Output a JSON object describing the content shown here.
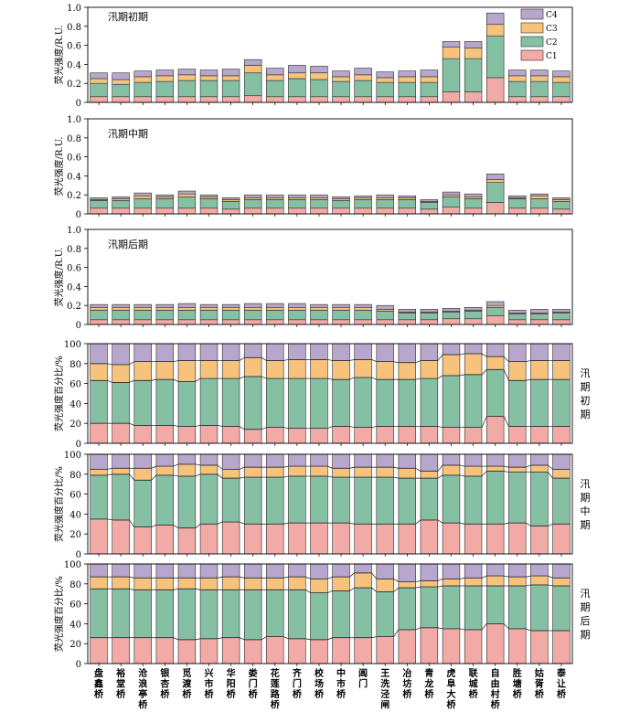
{
  "colors": {
    "C1": "#f2aaa6",
    "C2": "#86c0a4",
    "C3": "#f6c27c",
    "C4": "#b8a7cc",
    "edge": "#2b2b2b",
    "link": "#333333"
  },
  "legend": {
    "items": [
      "C4",
      "C3",
      "C2",
      "C1"
    ]
  },
  "x_labels": [
    "盘鑫桥",
    "裕堂桥",
    "沧浪亭桥",
    "银杏桥",
    "觅渡桥",
    "兴市桥",
    "华阳桥",
    "娄门桥",
    "花莲路桥",
    "齐门桥",
    "校场桥",
    "中市桥",
    "阊门",
    "王洗泾闸",
    "冶坊桥",
    "青龙桥",
    "虎阜大桥",
    "联城桥",
    "自由村桥",
    "胜塘桥",
    "姑胥桥",
    "泰让桥"
  ],
  "chart_data": [
    {
      "type": "bar",
      "stacked": true,
      "title": "汛期初期",
      "ylabel": "荧光强度/R.U.",
      "ylim": [
        0,
        1.0
      ],
      "yticks": [
        "0",
        "0.2",
        "0.4",
        "0.6",
        "0.8",
        "1.0"
      ],
      "side_label": "",
      "series": [
        {
          "name": "C1",
          "values": [
            0.06,
            0.06,
            0.06,
            0.06,
            0.06,
            0.06,
            0.06,
            0.07,
            0.06,
            0.06,
            0.06,
            0.06,
            0.06,
            0.06,
            0.06,
            0.06,
            0.11,
            0.11,
            0.26,
            0.06,
            0.06,
            0.06
          ]
        },
        {
          "name": "C2",
          "values": [
            0.14,
            0.13,
            0.15,
            0.16,
            0.17,
            0.17,
            0.17,
            0.24,
            0.17,
            0.19,
            0.18,
            0.16,
            0.17,
            0.15,
            0.15,
            0.15,
            0.35,
            0.35,
            0.44,
            0.16,
            0.16,
            0.15
          ]
        },
        {
          "name": "C3",
          "values": [
            0.05,
            0.05,
            0.06,
            0.06,
            0.06,
            0.05,
            0.05,
            0.08,
            0.06,
            0.06,
            0.07,
            0.05,
            0.06,
            0.05,
            0.06,
            0.06,
            0.12,
            0.11,
            0.12,
            0.06,
            0.06,
            0.06
          ]
        },
        {
          "name": "C4",
          "values": [
            0.06,
            0.07,
            0.06,
            0.06,
            0.06,
            0.06,
            0.07,
            0.06,
            0.07,
            0.08,
            0.07,
            0.06,
            0.07,
            0.06,
            0.06,
            0.07,
            0.06,
            0.07,
            0.12,
            0.06,
            0.06,
            0.06
          ]
        }
      ]
    },
    {
      "type": "bar",
      "stacked": true,
      "title": "汛期中期",
      "ylabel": "荧光强度/R.U.",
      "ylim": [
        0,
        1.0
      ],
      "yticks": [
        "0",
        "0.2",
        "0.4",
        "0.6",
        "0.8",
        "1.0"
      ],
      "side_label": "",
      "series": [
        {
          "name": "C1",
          "values": [
            0.06,
            0.06,
            0.06,
            0.06,
            0.06,
            0.06,
            0.05,
            0.06,
            0.06,
            0.06,
            0.06,
            0.06,
            0.06,
            0.06,
            0.06,
            0.05,
            0.07,
            0.06,
            0.12,
            0.06,
            0.06,
            0.05
          ]
        },
        {
          "name": "C2",
          "values": [
            0.08,
            0.08,
            0.1,
            0.1,
            0.12,
            0.1,
            0.08,
            0.09,
            0.09,
            0.09,
            0.09,
            0.08,
            0.09,
            0.09,
            0.09,
            0.07,
            0.11,
            0.1,
            0.21,
            0.1,
            0.1,
            0.08
          ]
        },
        {
          "name": "C3",
          "values": [
            0.01,
            0.02,
            0.03,
            0.02,
            0.03,
            0.02,
            0.02,
            0.02,
            0.02,
            0.02,
            0.02,
            0.02,
            0.02,
            0.02,
            0.02,
            0.01,
            0.02,
            0.02,
            0.03,
            0.01,
            0.03,
            0.02
          ]
        },
        {
          "name": "C4",
          "values": [
            0.02,
            0.02,
            0.03,
            0.02,
            0.03,
            0.02,
            0.02,
            0.03,
            0.03,
            0.03,
            0.03,
            0.02,
            0.02,
            0.03,
            0.02,
            0.02,
            0.03,
            0.03,
            0.06,
            0.02,
            0.02,
            0.02
          ]
        }
      ]
    },
    {
      "type": "bar",
      "stacked": true,
      "title": "汛期后期",
      "ylabel": "荧光强度/R.U.",
      "ylim": [
        0,
        1.0
      ],
      "yticks": [
        "0",
        "0.2",
        "0.4",
        "0.6",
        "0.8",
        "1.0"
      ],
      "side_label": "",
      "series": [
        {
          "name": "C1",
          "values": [
            0.05,
            0.05,
            0.05,
            0.05,
            0.05,
            0.05,
            0.05,
            0.05,
            0.05,
            0.05,
            0.05,
            0.05,
            0.05,
            0.05,
            0.05,
            0.05,
            0.06,
            0.06,
            0.09,
            0.05,
            0.05,
            0.05
          ]
        },
        {
          "name": "C2",
          "values": [
            0.1,
            0.1,
            0.1,
            0.1,
            0.1,
            0.1,
            0.1,
            0.1,
            0.1,
            0.1,
            0.1,
            0.1,
            0.1,
            0.09,
            0.07,
            0.07,
            0.07,
            0.08,
            0.09,
            0.06,
            0.06,
            0.07
          ]
        },
        {
          "name": "C3",
          "values": [
            0.03,
            0.03,
            0.03,
            0.03,
            0.03,
            0.03,
            0.03,
            0.03,
            0.03,
            0.03,
            0.03,
            0.03,
            0.03,
            0.02,
            0.01,
            0.01,
            0.01,
            0.01,
            0.02,
            0.01,
            0.01,
            0.01
          ]
        },
        {
          "name": "C4",
          "values": [
            0.03,
            0.03,
            0.03,
            0.03,
            0.04,
            0.03,
            0.03,
            0.04,
            0.04,
            0.04,
            0.03,
            0.03,
            0.03,
            0.04,
            0.03,
            0.03,
            0.03,
            0.03,
            0.04,
            0.03,
            0.04,
            0.03
          ]
        }
      ]
    },
    {
      "type": "bar",
      "stacked": true,
      "percent": true,
      "title": "",
      "ylabel": "荧光强度百分比/%",
      "ylim": [
        0,
        100
      ],
      "yticks": [
        "0",
        "20",
        "40",
        "60",
        "80",
        "100"
      ],
      "side_label": "汛期初期",
      "series": [
        {
          "name": "C1",
          "values": [
            20,
            20,
            18,
            18,
            17,
            18,
            17,
            14,
            16,
            15,
            15,
            17,
            16,
            17,
            17,
            17,
            16,
            16,
            27,
            17,
            17,
            17
          ]
        },
        {
          "name": "C2",
          "values": [
            43,
            41,
            45,
            46,
            45,
            47,
            48,
            53,
            49,
            50,
            50,
            47,
            50,
            47,
            47,
            48,
            52,
            53,
            47,
            46,
            47,
            47
          ]
        },
        {
          "name": "C3",
          "values": [
            17,
            18,
            19,
            18,
            21,
            18,
            18,
            19,
            18,
            19,
            19,
            19,
            18,
            18,
            17,
            18,
            21,
            21,
            13,
            19,
            19,
            19
          ]
        },
        {
          "name": "C4",
          "values": [
            20,
            21,
            18,
            18,
            17,
            17,
            17,
            14,
            17,
            16,
            16,
            17,
            16,
            18,
            19,
            17,
            11,
            10,
            13,
            18,
            17,
            17
          ]
        }
      ]
    },
    {
      "type": "bar",
      "stacked": true,
      "percent": true,
      "title": "",
      "ylabel": "荧光强度百分比/%",
      "ylim": [
        0,
        100
      ],
      "yticks": [
        "0",
        "20",
        "40",
        "60",
        "80",
        "100"
      ],
      "side_label": "汛期中期",
      "series": [
        {
          "name": "C1",
          "values": [
            35,
            34,
            27,
            29,
            26,
            30,
            32,
            30,
            30,
            31,
            31,
            31,
            30,
            30,
            30,
            34,
            31,
            30,
            30,
            31,
            28,
            30
          ]
        },
        {
          "name": "C2",
          "values": [
            44,
            46,
            47,
            50,
            52,
            50,
            44,
            47,
            47,
            47,
            47,
            46,
            47,
            47,
            46,
            42,
            48,
            48,
            53,
            51,
            54,
            46
          ]
        },
        {
          "name": "C3",
          "values": [
            6,
            6,
            12,
            9,
            12,
            9,
            9,
            10,
            10,
            10,
            10,
            9,
            10,
            10,
            10,
            7,
            10,
            10,
            5,
            5,
            7,
            9
          ]
        },
        {
          "name": "C4",
          "values": [
            15,
            14,
            14,
            12,
            10,
            11,
            15,
            13,
            13,
            12,
            12,
            14,
            13,
            13,
            14,
            17,
            11,
            12,
            12,
            13,
            11,
            15
          ]
        }
      ]
    },
    {
      "type": "bar",
      "stacked": true,
      "percent": true,
      "title": "",
      "ylabel": "荧光强度百分比/%",
      "ylim": [
        0,
        100
      ],
      "yticks": [
        "0",
        "20",
        "40",
        "60",
        "80",
        "100"
      ],
      "side_label": "汛期后期",
      "series": [
        {
          "name": "C1",
          "values": [
            26,
            26,
            26,
            26,
            24,
            25,
            26,
            24,
            27,
            25,
            24,
            26,
            26,
            27,
            34,
            36,
            35,
            34,
            40,
            35,
            33,
            33
          ]
        },
        {
          "name": "C2",
          "values": [
            49,
            49,
            48,
            48,
            51,
            49,
            48,
            50,
            47,
            49,
            47,
            47,
            50,
            45,
            42,
            41,
            43,
            44,
            38,
            43,
            46,
            45
          ]
        },
        {
          "name": "C3",
          "values": [
            12,
            12,
            12,
            12,
            11,
            12,
            13,
            12,
            12,
            13,
            14,
            14,
            15,
            13,
            6,
            6,
            7,
            8,
            10,
            9,
            9,
            8
          ]
        },
        {
          "name": "C4",
          "values": [
            13,
            13,
            14,
            14,
            14,
            14,
            13,
            14,
            14,
            13,
            15,
            13,
            9,
            15,
            18,
            17,
            15,
            14,
            12,
            13,
            12,
            14
          ]
        }
      ]
    }
  ]
}
